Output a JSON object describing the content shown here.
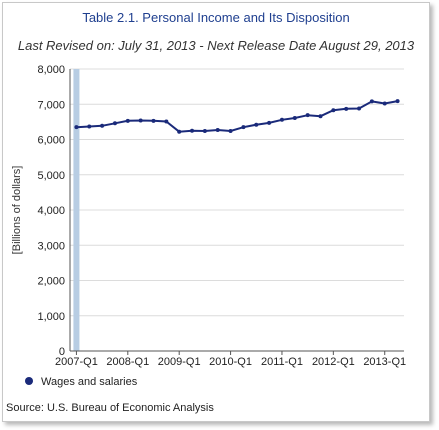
{
  "chart_data": {
    "type": "line",
    "title": "Table 2.1. Personal Income and Its Disposition",
    "subtitle": "Last Revised on: July 31, 2013 - Next Release Date August 29, 2013",
    "ylabel": "[Billions of dollars]",
    "xlabel": "",
    "ylim": [
      0,
      8000
    ],
    "yticks": [
      "0",
      "1,000",
      "2,000",
      "3,000",
      "4,000",
      "5,000",
      "6,000",
      "7,000",
      "8,000"
    ],
    "ytick_values": [
      0,
      1000,
      2000,
      3000,
      4000,
      5000,
      6000,
      7000,
      8000
    ],
    "xticks": [
      "2007-Q1",
      "2008-Q1",
      "2009-Q1",
      "2010-Q1",
      "2011-Q1",
      "2012-Q1",
      "2013-Q1"
    ],
    "x": [
      "2007-Q1",
      "2007-Q2",
      "2007-Q3",
      "2007-Q4",
      "2008-Q1",
      "2008-Q2",
      "2008-Q3",
      "2008-Q4",
      "2009-Q1",
      "2009-Q2",
      "2009-Q3",
      "2009-Q4",
      "2010-Q1",
      "2010-Q2",
      "2010-Q3",
      "2010-Q4",
      "2011-Q1",
      "2011-Q2",
      "2011-Q3",
      "2011-Q4",
      "2012-Q1",
      "2012-Q2",
      "2012-Q3",
      "2012-Q4",
      "2013-Q1",
      "2013-Q2"
    ],
    "highlight_x": "2007-Q1",
    "grid": true,
    "legend_position": "bottom-left",
    "series": [
      {
        "name": "Wages and salaries",
        "color": "#1a2a7a",
        "values": [
          6350,
          6370,
          6390,
          6460,
          6530,
          6540,
          6530,
          6510,
          6220,
          6250,
          6240,
          6270,
          6240,
          6350,
          6420,
          6470,
          6560,
          6610,
          6690,
          6660,
          6830,
          6870,
          6880,
          7080,
          7020,
          7090
        ]
      }
    ]
  },
  "source": "Source: U.S. Bureau of Economic Analysis"
}
